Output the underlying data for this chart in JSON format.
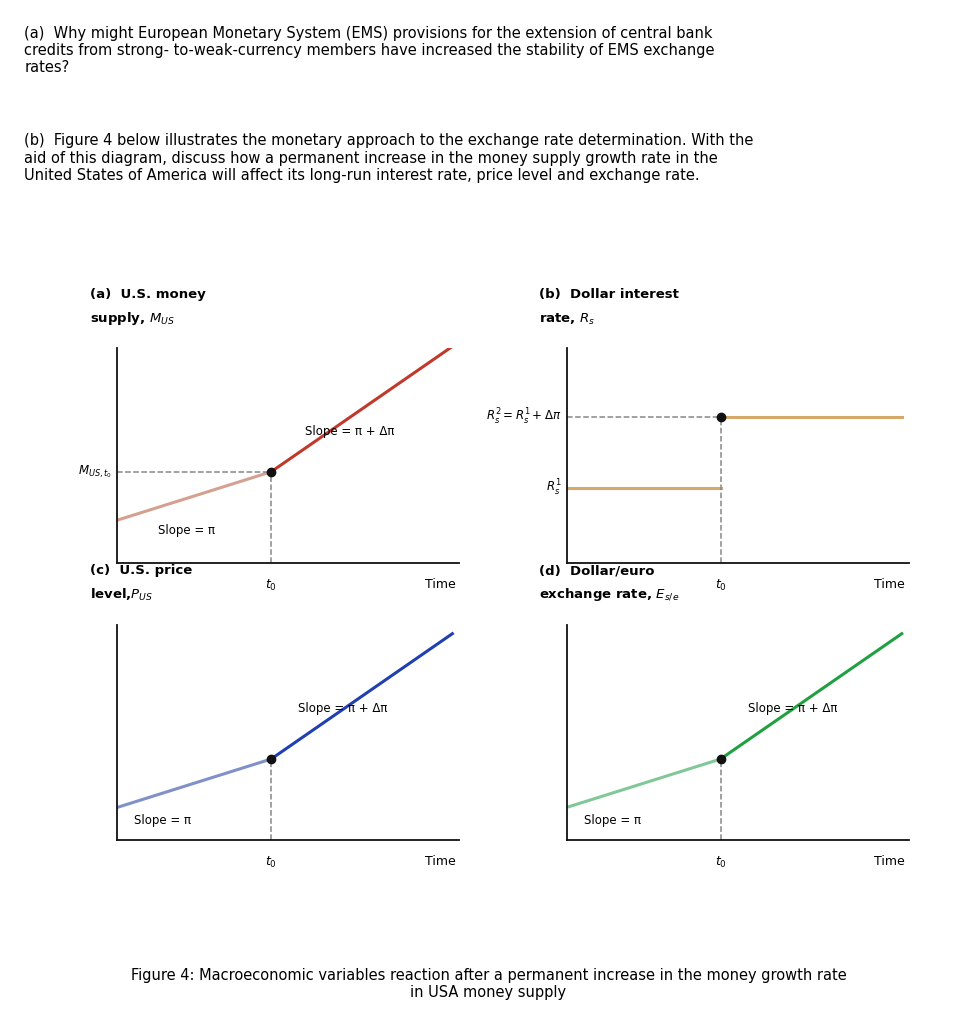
{
  "text_a": "(a)  Why might European Monetary System (EMS) provisions for the extension of central bank\ncredits from strong- to-weak-currency members have increased the stability of EMS exchange\nrates?",
  "text_b": "(b)  Figure 4 below illustrates the monetary approach to the exchange rate determination. With the\naid of this diagram, discuss how a permanent increase in the money supply growth rate in the\nUnited States of America will affect its long-run interest rate, price level and exchange rate.",
  "fig_caption_line1": "Figure 4: Macroeconomic variables reaction after a permanent increase in the money growth rate",
  "fig_caption_line2": "in USA money supply",
  "subplot_title_a1": "(a)  U.S. money",
  "subplot_title_a2": "supply, $M_{US}$",
  "subplot_title_b1": "(b)  Dollar interest",
  "subplot_title_b2": "rate, $R_s$",
  "subplot_title_c1": "(c)  U.S. price",
  "subplot_title_c2": "level,$P_{US}$",
  "subplot_title_d1": "(d)  Dollar/euro",
  "subplot_title_d2": "exchange rate, $E_{s/e}$",
  "xlabel": "Time",
  "t0_label": "$t_0$",
  "colors": {
    "line_before_a": "#d4a090",
    "line_after_a": "#c0392b",
    "line_b": "#d4a96a",
    "line_before_c": "#8090c8",
    "line_after_c": "#2040b0",
    "line_before_d": "#80c898",
    "line_after_d": "#20a040",
    "dashed": "#888888",
    "dot": "#111111"
  },
  "slope_a_before": "Slope = π",
  "slope_a_after": "Slope = π + Δπ",
  "label_r1": "$R_s^1$",
  "label_r2": "$R_s^2 = R_s^1 + Δπ$",
  "slope_c_before": "Slope = π",
  "slope_c_after": "Slope = π + Δπ",
  "slope_d_before": "Slope = π",
  "slope_d_after": "Slope = π + Δπ",
  "mus_label": "$M_{US,t_0}$"
}
